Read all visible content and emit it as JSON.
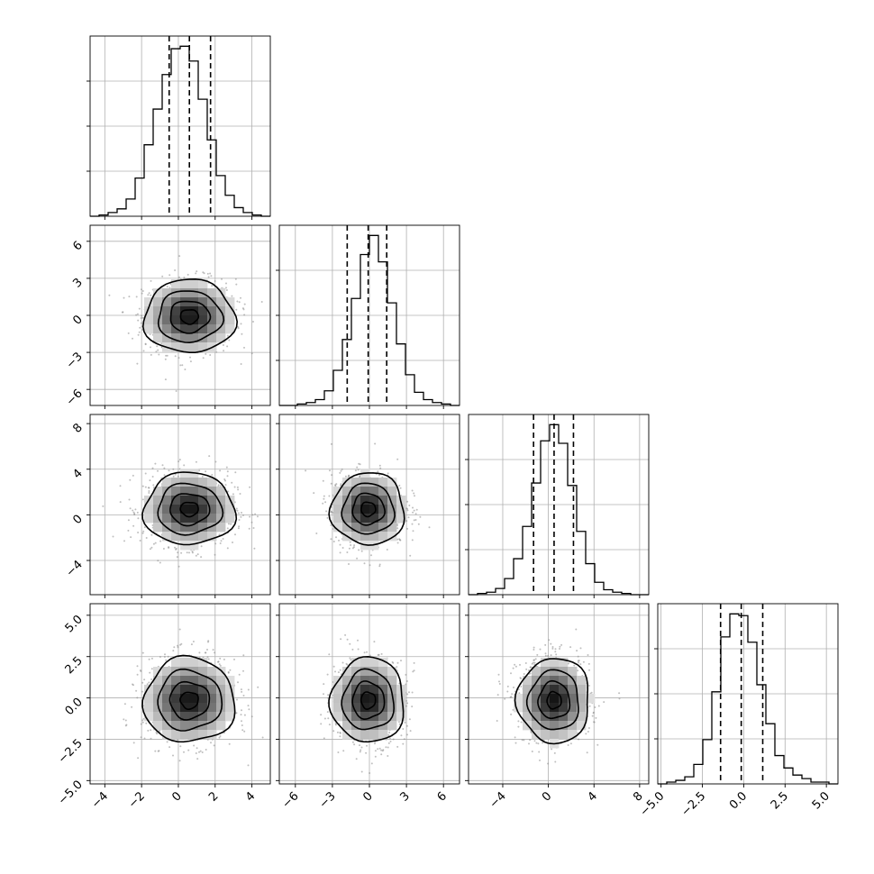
{
  "chart_data": {
    "type": "corner",
    "parameters": 4,
    "grid": true,
    "colors": {
      "line": "#000000",
      "points": "#8a8a8a",
      "density_dark": "#000000",
      "grid": "#b0b0b0"
    },
    "axes": [
      {
        "range": [
          -4.8,
          5.0
        ],
        "ticks": [
          -4,
          -2,
          0,
          2,
          4
        ],
        "tick_labels": [
          "−4",
          "−2",
          "0",
          "2",
          "4"
        ],
        "mean": 0.6,
        "std": 1.25,
        "quantiles": [
          -0.5,
          0.6,
          1.75
        ],
        "histogram": {
          "edges_start": -4.8,
          "bin_width": 0.49,
          "counts": [
            0,
            1,
            3,
            6,
            14,
            31,
            58,
            87,
            115,
            136,
            138,
            126,
            95,
            62,
            33,
            17,
            7,
            3,
            1,
            0
          ]
        }
      },
      {
        "range": [
          -7.3,
          7.3
        ],
        "ticks": [
          -6,
          -3,
          0,
          3,
          6
        ],
        "tick_labels": [
          "−6",
          "−3",
          "0",
          "3",
          "6"
        ],
        "mean": -0.1,
        "std": 1.5,
        "quantiles": [
          -1.8,
          -0.1,
          1.4
        ],
        "histogram": {
          "edges_start": -7.3,
          "bin_width": 0.73,
          "counts": [
            0,
            0,
            1,
            2,
            4,
            10,
            24,
            45,
            73,
            103,
            116,
            98,
            70,
            42,
            21,
            9,
            4,
            2,
            1,
            0
          ]
        }
      },
      {
        "range": [
          -7.0,
          8.8
        ],
        "ticks": [
          -4,
          0,
          4,
          8
        ],
        "tick_labels": [
          "−4",
          "0",
          "4",
          "8"
        ],
        "mean": 0.5,
        "std": 1.6,
        "quantiles": [
          -1.3,
          0.5,
          2.2
        ],
        "histogram": {
          "edges_start": -7.0,
          "bin_width": 0.79,
          "counts": [
            0,
            1,
            2,
            5,
            13,
            29,
            55,
            90,
            124,
            137,
            122,
            88,
            51,
            25,
            10,
            4,
            2,
            1,
            0,
            0
          ]
        }
      },
      {
        "range": [
          -5.2,
          5.7
        ],
        "ticks": [
          -5.0,
          -2.5,
          0.0,
          2.5,
          5.0
        ],
        "tick_labels": [
          "−5.0",
          "−2.5",
          "0.0",
          "2.5",
          "5.0"
        ],
        "mean": -0.15,
        "std": 1.3,
        "quantiles": [
          -1.4,
          -0.15,
          1.15
        ],
        "histogram": {
          "edges_start": -5.2,
          "bin_width": 0.545,
          "counts": [
            0,
            1,
            2,
            4,
            11,
            25,
            52,
            83,
            96,
            95,
            80,
            56,
            34,
            16,
            9,
            5,
            3,
            1,
            1,
            0
          ]
        }
      }
    ],
    "contour_levels": [
      0.39,
      0.86,
      1.39,
      1.98
    ]
  }
}
